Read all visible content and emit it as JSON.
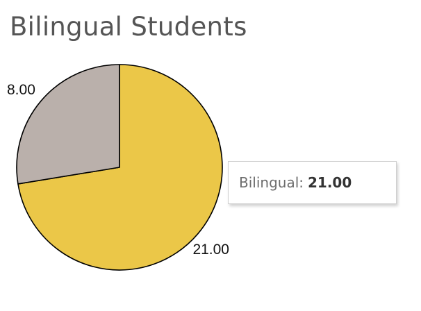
{
  "chart_data": {
    "type": "pie",
    "title": "Bilingual Students",
    "slices": [
      {
        "name": "Bilingual",
        "value": 21.0,
        "label": "21.00",
        "color": "#ebc748"
      },
      {
        "value": 8.0,
        "label": "8.00",
        "color": "#bab0ab"
      }
    ],
    "tooltip": {
      "label": "Bilingual:",
      "value": "21.00"
    }
  }
}
